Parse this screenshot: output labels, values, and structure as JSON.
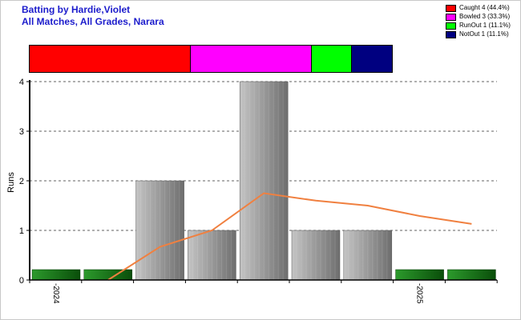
{
  "header": {
    "title_line1": "Batting by Hardie,Violet",
    "title_line2": "All Matches, All Grades, Narara"
  },
  "legend": [
    {
      "label": "Caught 4 (44.4%)",
      "color": "#ff0000"
    },
    {
      "label": "Bowled 3 (33.3%)",
      "color": "#ff00ff"
    },
    {
      "label": "RunOut 1 (11.1%)",
      "color": "#00ff00"
    },
    {
      "label": "NotOut 1 (11.1%)",
      "color": "#000080"
    }
  ],
  "dismissal_distribution": [
    {
      "name": "Caught",
      "count": 4,
      "color": "#ff0000"
    },
    {
      "name": "Bowled",
      "count": 3,
      "color": "#ff00ff"
    },
    {
      "name": "RunOut",
      "count": 1,
      "color": "#00ff00"
    },
    {
      "name": "NotOut",
      "count": 1,
      "color": "#000080"
    }
  ],
  "chart_data": {
    "type": "bar",
    "ylabel": "Runs",
    "xlabel": "",
    "ylim": [
      0,
      4
    ],
    "yticks": [
      0,
      1,
      2,
      3,
      4
    ],
    "grid": true,
    "legend_position": "top-right",
    "x_tick_labels": [
      {
        "label": "2024",
        "at_index": 0
      },
      {
        "label": "2025",
        "at_index": 7
      }
    ],
    "series": [
      {
        "values": [
          0,
          0,
          2,
          1,
          4,
          1,
          1,
          0,
          0
        ],
        "zero_marker_color": "#1a7a1a",
        "bar_color": "#a0a0a0"
      },
      {
        "kind": "line",
        "color": "#f08040",
        "values": [
          null,
          0,
          0.67,
          1.0,
          1.75,
          1.6,
          1.5,
          1.29,
          1.13
        ]
      }
    ]
  }
}
